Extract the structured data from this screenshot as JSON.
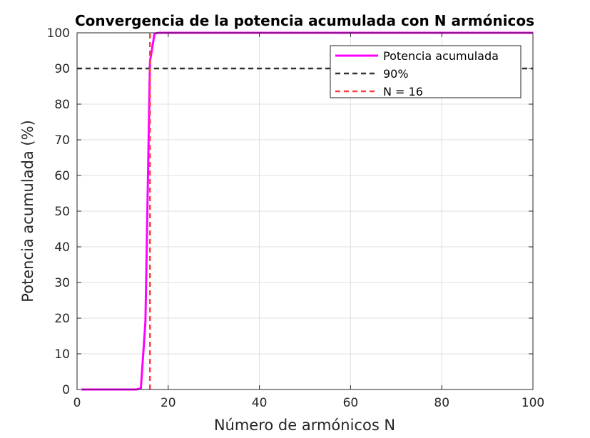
{
  "chart_data": {
    "type": "line",
    "title": "Convergencia de la potencia acumulada con N armónicos",
    "xlabel": "Número de armónicos N",
    "ylabel": "Potencia acumulada (%)",
    "xlim": [
      0,
      100
    ],
    "ylim": [
      0,
      100
    ],
    "xticks": [
      0,
      20,
      40,
      60,
      80,
      100
    ],
    "yticks": [
      0,
      10,
      20,
      30,
      40,
      50,
      60,
      70,
      80,
      90,
      100
    ],
    "grid": true,
    "legend_position": "top-right",
    "series": [
      {
        "name": "Potencia acumulada",
        "color": "#FF00FF",
        "style": "solid",
        "x": [
          1,
          2,
          3,
          4,
          5,
          6,
          7,
          8,
          9,
          10,
          11,
          12,
          13,
          14,
          15,
          16,
          17,
          18,
          19,
          20,
          25,
          30,
          40,
          50,
          60,
          70,
          80,
          90,
          100
        ],
        "y": [
          0,
          0,
          0,
          0,
          0,
          0,
          0,
          0,
          0,
          0,
          0,
          0,
          0,
          0.3,
          19,
          92,
          99.8,
          100,
          100,
          100,
          100,
          100,
          100,
          100,
          100,
          100,
          100,
          100,
          100
        ]
      },
      {
        "name": "90%",
        "color": "#333333",
        "style": "dashed",
        "x": [
          0,
          100
        ],
        "y": [
          90,
          90
        ]
      },
      {
        "name": "N = 16",
        "color": "#FF4040",
        "style": "dashed",
        "x": [
          16,
          16
        ],
        "y": [
          0,
          100
        ]
      }
    ]
  }
}
